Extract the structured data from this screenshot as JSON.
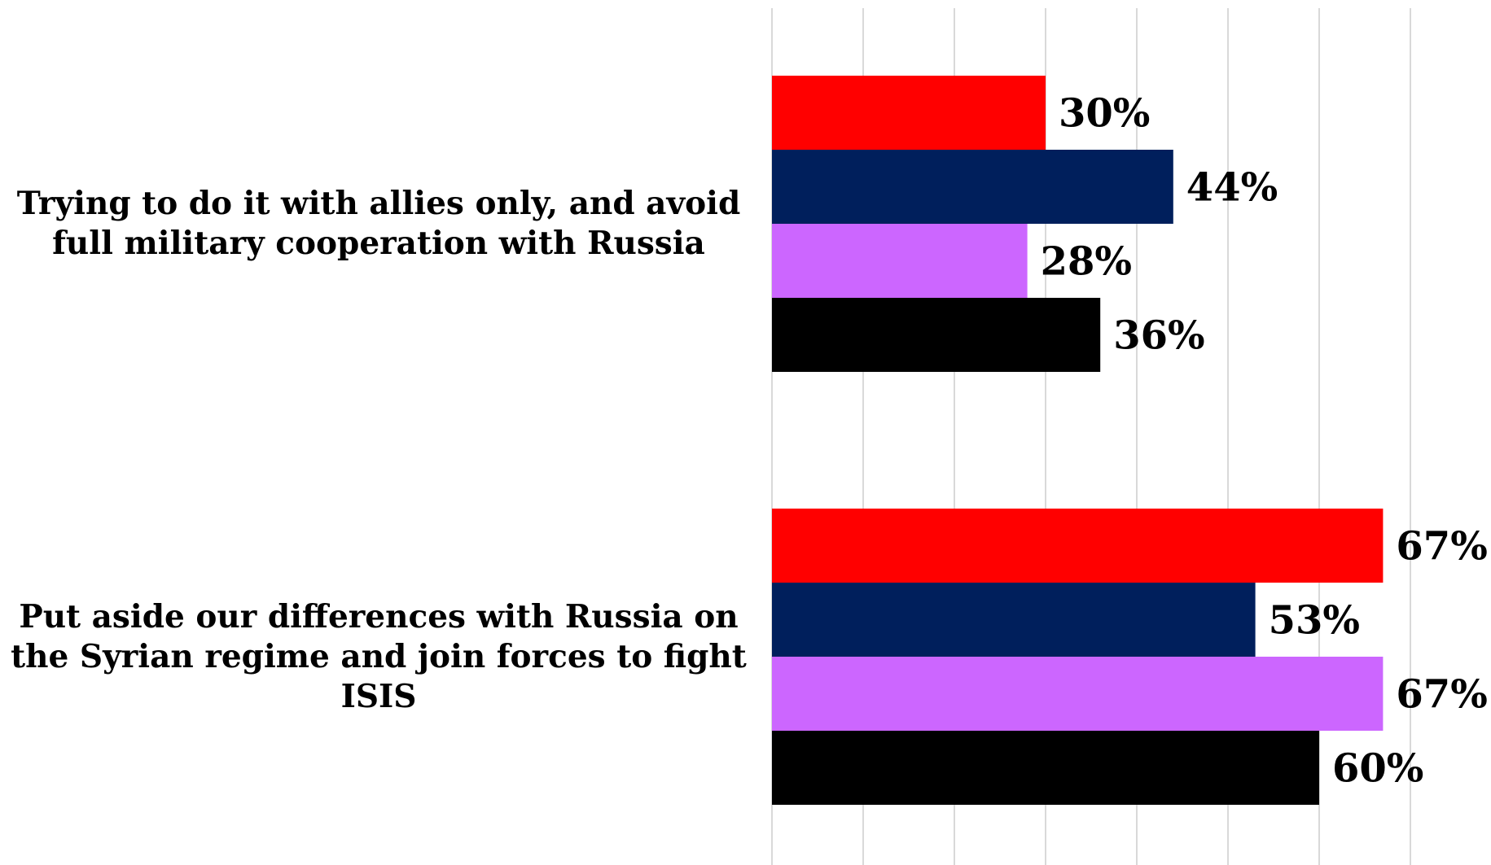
{
  "chart_data": {
    "type": "bar",
    "orientation": "horizontal",
    "categories": [
      "Trying to do it with allies only, and avoid full military cooperation with Russia",
      "Put aside our differences with Russia on the Syrian regime and join forces to fight ISIS"
    ],
    "series": [
      {
        "values": [
          30,
          67
        ],
        "color": "#ff0000"
      },
      {
        "values": [
          44,
          53
        ],
        "color": "#001f5c"
      },
      {
        "values": [
          28,
          67
        ],
        "color": "#cc66ff"
      },
      {
        "values": [
          36,
          60
        ],
        "color": "#000000"
      }
    ],
    "data_labels": [
      [
        "30%",
        "67%"
      ],
      [
        "44%",
        "53%"
      ],
      [
        "28%",
        "67%"
      ],
      [
        "36%",
        "60%"
      ]
    ],
    "xlim": [
      0,
      70
    ],
    "grid": true,
    "legend": "none"
  }
}
